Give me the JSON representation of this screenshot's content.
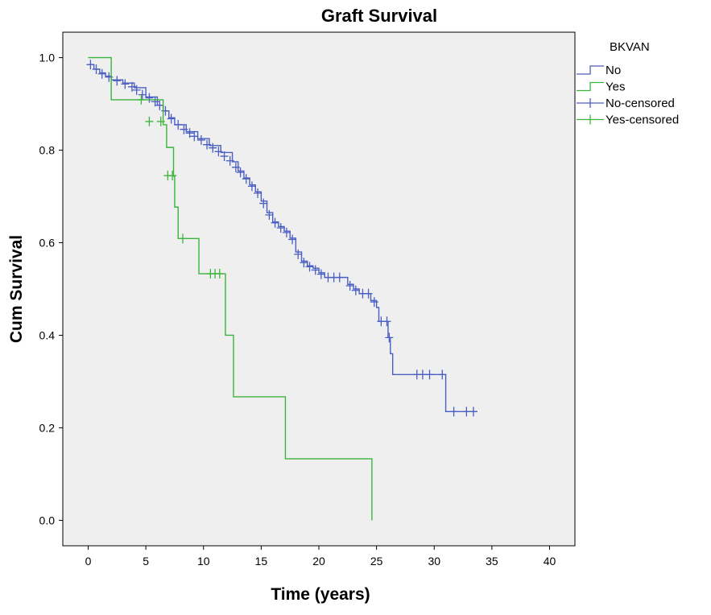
{
  "chart_data": {
    "type": "line",
    "title": "Graft Survival",
    "xlabel": "Time (years)",
    "ylabel": "Cum Survival",
    "xlim": [
      -2.2,
      42.2
    ],
    "ylim": [
      -0.055,
      1.055
    ],
    "x_ticks": [
      0,
      5,
      10,
      15,
      20,
      25,
      30,
      35,
      40
    ],
    "y_ticks": [
      0.0,
      0.2,
      0.4,
      0.6,
      0.8,
      1.0
    ],
    "x_tick_labels": [
      "0",
      "5",
      "10",
      "15",
      "20",
      "25",
      "30",
      "35",
      "40"
    ],
    "y_tick_labels": [
      "0.0",
      "0.2",
      "0.4",
      "0.6",
      "0.8",
      "1.0"
    ],
    "grid": false,
    "step": true,
    "colors": {
      "plot_background": "#efefef",
      "No": "#4a5fc1",
      "Yes": "#3cb43c"
    },
    "legend": {
      "title": "BKVAN",
      "placement": "right",
      "entries": [
        "No",
        "Yes",
        "No-censored",
        "Yes-censored"
      ]
    },
    "series": [
      {
        "name": "No",
        "color": "#4a5fc1",
        "points": [
          [
            0,
            0.985
          ],
          [
            0.5,
            0.975
          ],
          [
            1,
            0.967
          ],
          [
            1.5,
            0.96
          ],
          [
            2,
            0.952
          ],
          [
            3,
            0.945
          ],
          [
            4,
            0.935
          ],
          [
            5,
            0.915
          ],
          [
            6,
            0.897
          ],
          [
            6.5,
            0.885
          ],
          [
            7,
            0.87
          ],
          [
            7.5,
            0.855
          ],
          [
            8.5,
            0.84
          ],
          [
            9.5,
            0.825
          ],
          [
            10.5,
            0.81
          ],
          [
            11.5,
            0.795
          ],
          [
            12.5,
            0.775
          ],
          [
            13,
            0.755
          ],
          [
            13.5,
            0.74
          ],
          [
            14,
            0.725
          ],
          [
            14.5,
            0.71
          ],
          [
            15,
            0.69
          ],
          [
            15.5,
            0.665
          ],
          [
            16,
            0.645
          ],
          [
            16.5,
            0.635
          ],
          [
            17,
            0.625
          ],
          [
            17.5,
            0.61
          ],
          [
            18,
            0.58
          ],
          [
            18.5,
            0.56
          ],
          [
            19,
            0.55
          ],
          [
            19.5,
            0.545
          ],
          [
            20,
            0.535
          ],
          [
            20.5,
            0.525
          ],
          [
            22,
            0.525
          ],
          [
            22.5,
            0.51
          ],
          [
            23,
            0.5
          ],
          [
            23.5,
            0.49
          ],
          [
            24.5,
            0.475
          ],
          [
            25,
            0.46
          ],
          [
            25.2,
            0.43
          ],
          [
            25.8,
            0.43
          ],
          [
            26,
            0.395
          ],
          [
            26.2,
            0.36
          ],
          [
            26.4,
            0.315
          ],
          [
            30.8,
            0.315
          ],
          [
            31,
            0.235
          ],
          [
            33.7,
            0.235
          ]
        ],
        "censored": [
          [
            0.2,
            0.985
          ],
          [
            0.7,
            0.975
          ],
          [
            1.2,
            0.965
          ],
          [
            1.8,
            0.958
          ],
          [
            2.5,
            0.95
          ],
          [
            3.2,
            0.943
          ],
          [
            3.8,
            0.937
          ],
          [
            4.2,
            0.93
          ],
          [
            4.7,
            0.92
          ],
          [
            5.3,
            0.913
          ],
          [
            5.8,
            0.905
          ],
          [
            6.2,
            0.897
          ],
          [
            6.7,
            0.885
          ],
          [
            7.2,
            0.868
          ],
          [
            7.8,
            0.855
          ],
          [
            8.3,
            0.845
          ],
          [
            8.8,
            0.837
          ],
          [
            9.2,
            0.83
          ],
          [
            9.8,
            0.822
          ],
          [
            10.3,
            0.812
          ],
          [
            10.8,
            0.805
          ],
          [
            11.3,
            0.797
          ],
          [
            11.8,
            0.787
          ],
          [
            12.3,
            0.777
          ],
          [
            12.8,
            0.763
          ],
          [
            13.2,
            0.752
          ],
          [
            13.7,
            0.738
          ],
          [
            14.2,
            0.722
          ],
          [
            14.7,
            0.707
          ],
          [
            15.2,
            0.685
          ],
          [
            15.7,
            0.66
          ],
          [
            16.2,
            0.643
          ],
          [
            16.7,
            0.632
          ],
          [
            17.2,
            0.622
          ],
          [
            17.7,
            0.607
          ],
          [
            18.2,
            0.575
          ],
          [
            18.7,
            0.557
          ],
          [
            19.2,
            0.548
          ],
          [
            19.7,
            0.541
          ],
          [
            20.2,
            0.532
          ],
          [
            20.8,
            0.525
          ],
          [
            21.3,
            0.525
          ],
          [
            21.8,
            0.525
          ],
          [
            22.7,
            0.507
          ],
          [
            23.2,
            0.497
          ],
          [
            23.8,
            0.49
          ],
          [
            24.3,
            0.49
          ],
          [
            24.8,
            0.472
          ],
          [
            25.4,
            0.43
          ],
          [
            25.9,
            0.43
          ],
          [
            26.1,
            0.395
          ],
          [
            28.5,
            0.315
          ],
          [
            29.0,
            0.315
          ],
          [
            29.6,
            0.315
          ],
          [
            30.7,
            0.315
          ],
          [
            31.7,
            0.235
          ],
          [
            32.8,
            0.235
          ],
          [
            33.4,
            0.235
          ]
        ]
      },
      {
        "name": "Yes",
        "color": "#3cb43c",
        "points": [
          [
            0,
            1.0
          ],
          [
            1.5,
            1.0
          ],
          [
            2,
            0.909
          ],
          [
            5,
            0.909
          ],
          [
            5.1,
            0.909
          ],
          [
            6.5,
            0.855
          ],
          [
            6.8,
            0.806
          ],
          [
            7.4,
            0.744
          ],
          [
            7.5,
            0.677
          ],
          [
            7.8,
            0.609
          ],
          [
            9.5,
            0.609
          ],
          [
            9.6,
            0.533
          ],
          [
            11.7,
            0.533
          ],
          [
            11.9,
            0.4
          ],
          [
            12.5,
            0.4
          ],
          [
            12.6,
            0.267
          ],
          [
            17,
            0.267
          ],
          [
            17.1,
            0.133
          ],
          [
            24.6,
            0.133
          ],
          [
            24.6,
            0.0
          ]
        ],
        "censored": [
          [
            4.6,
            0.909
          ],
          [
            5.3,
            0.862
          ],
          [
            6.3,
            0.862
          ],
          [
            6.9,
            0.745
          ],
          [
            7.3,
            0.745
          ],
          [
            8.2,
            0.609
          ],
          [
            10.6,
            0.533
          ],
          [
            11.0,
            0.533
          ],
          [
            11.4,
            0.533
          ]
        ]
      }
    ]
  }
}
